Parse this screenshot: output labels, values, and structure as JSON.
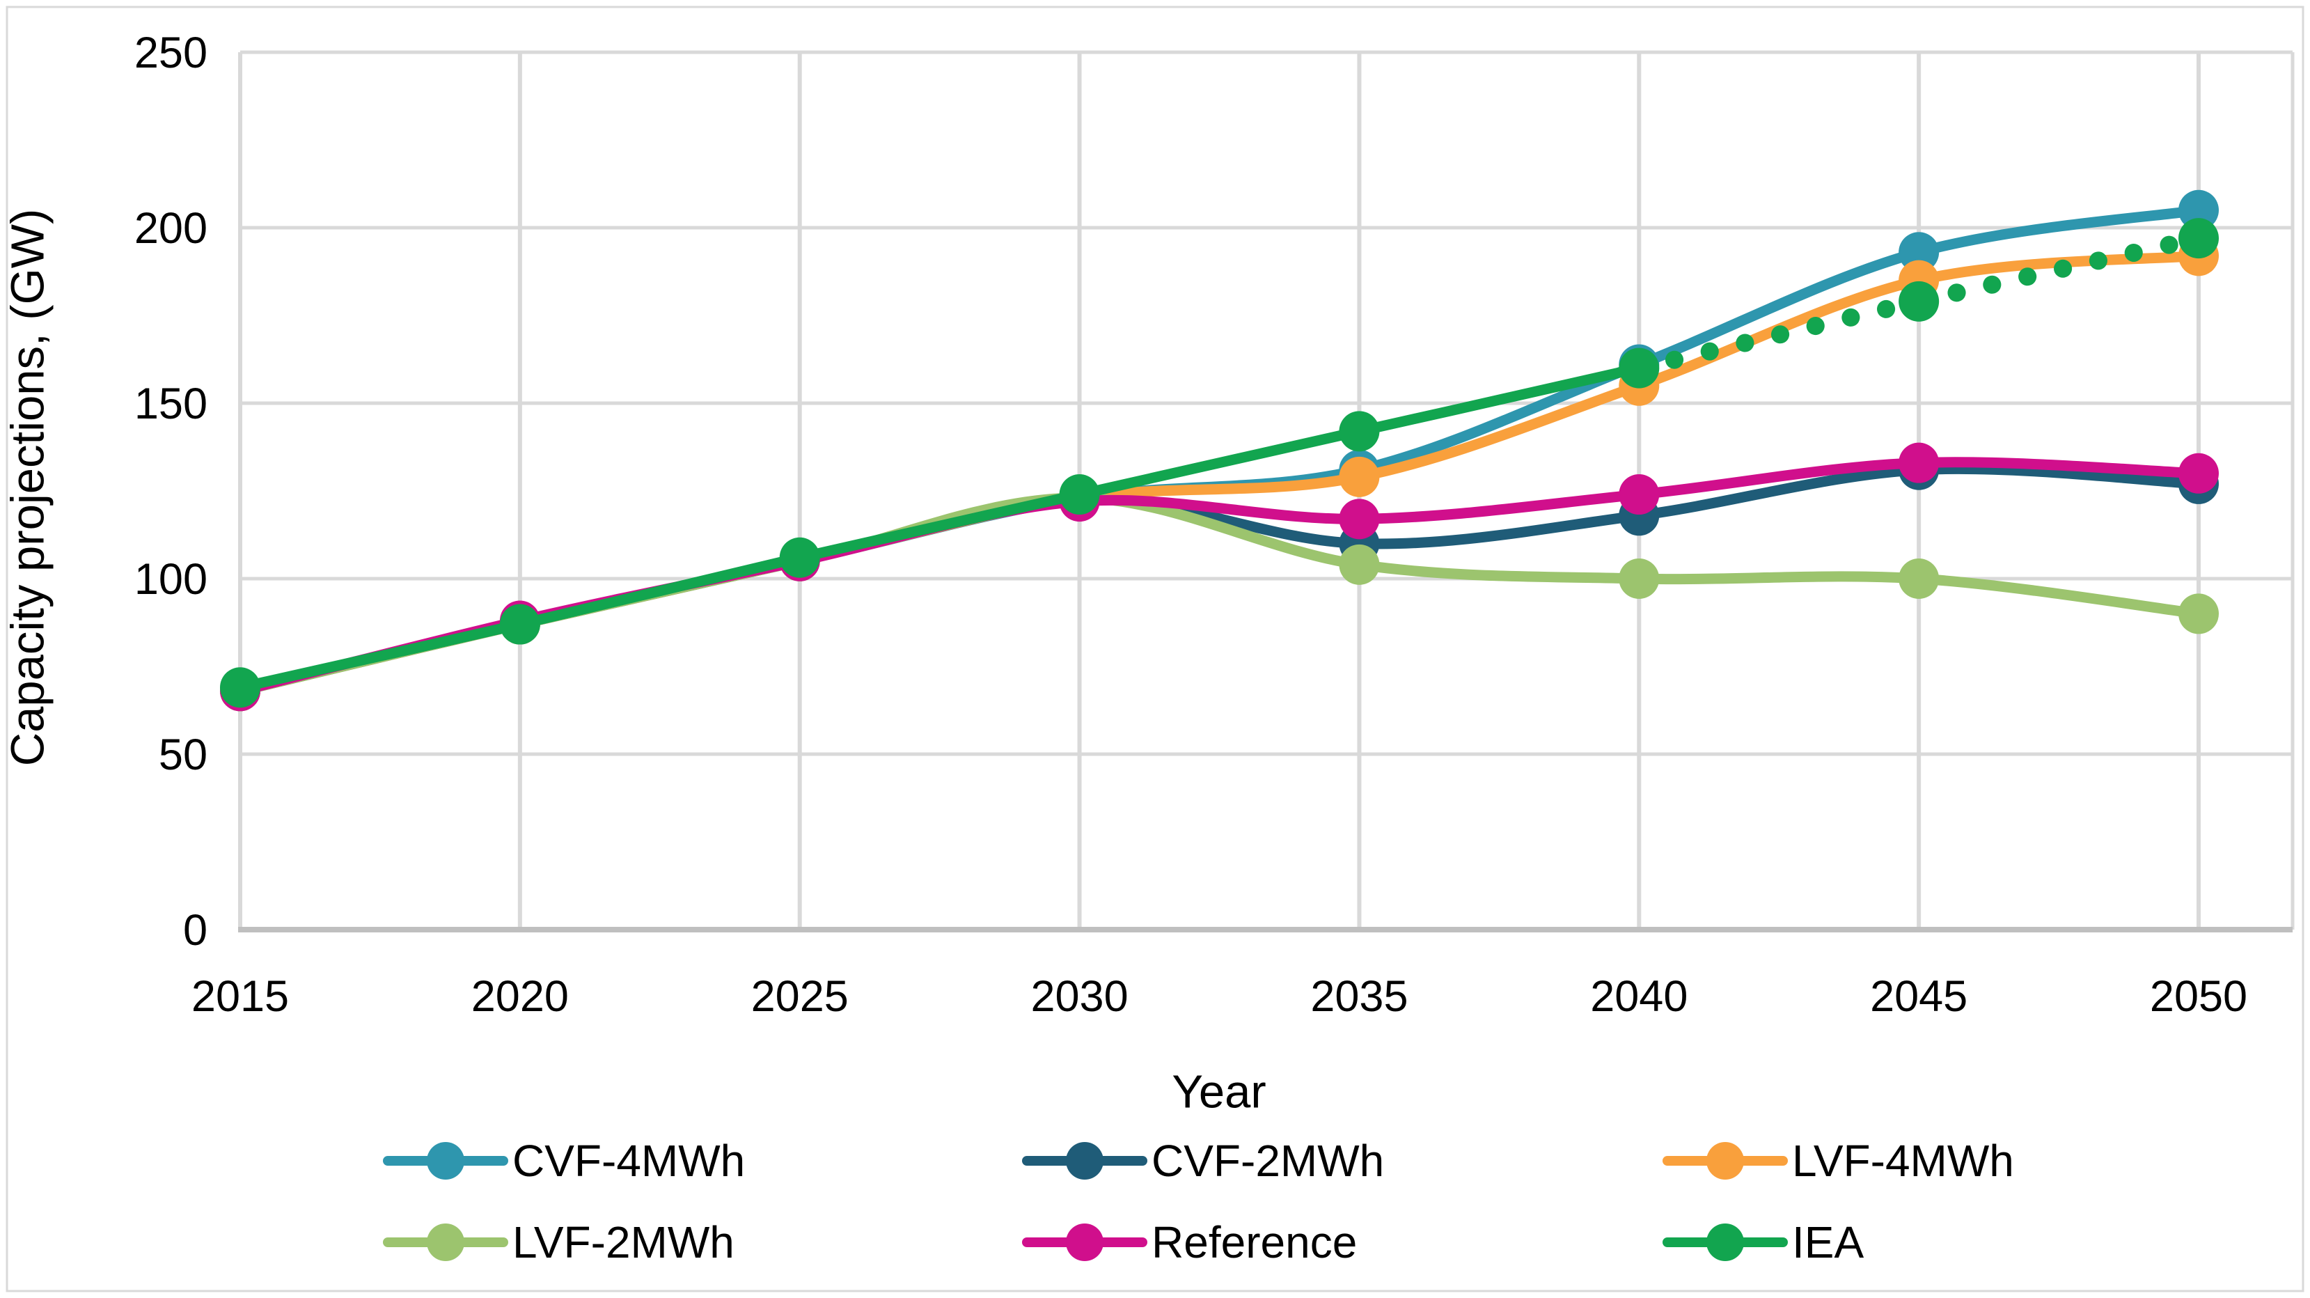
{
  "figure": {
    "background": "#ffffff",
    "outer_border_color": "#d9d9d9"
  },
  "colors": {
    "gridline": "#d9d9d9",
    "axis_line": "#bfbfbf",
    "text": "#000000"
  },
  "chart_data": {
    "type": "line",
    "title": "",
    "xlabel": "Year",
    "ylabel": "Capacity projections, (GW)",
    "x": [
      2015,
      2020,
      2025,
      2030,
      2035,
      2040,
      2045,
      2050
    ],
    "yticks": [
      0,
      50,
      100,
      150,
      200,
      250
    ],
    "ylim": [
      0,
      250
    ],
    "grid": true,
    "legend_position": "bottom",
    "marker": "circle",
    "series": [
      {
        "name": "CVF-4MWh",
        "color": "#2e96ae",
        "style": "solid",
        "values": [
          68,
          87,
          105,
          123,
          131,
          161,
          193,
          205
        ]
      },
      {
        "name": "CVF-2MWh",
        "color": "#1f5c78",
        "style": "solid",
        "values": [
          68,
          87,
          105,
          123,
          110,
          118,
          131,
          127
        ]
      },
      {
        "name": "LVF-4MWh",
        "color": "#f9a03c",
        "style": "solid",
        "values": [
          68,
          87,
          105,
          123,
          129,
          155,
          185,
          192
        ]
      },
      {
        "name": "LVF-2MWh",
        "color": "#9cc46e",
        "style": "solid",
        "values": [
          68,
          87,
          105,
          123,
          104,
          100,
          100,
          90
        ]
      },
      {
        "name": "Reference",
        "color": "#d00f8c",
        "style": "solid",
        "values": [
          68,
          88,
          105,
          122,
          117,
          124,
          133,
          130
        ]
      },
      {
        "name": "IEA",
        "color": "#12a54f",
        "style": "solid_then_dotted",
        "dotted_from": 2040,
        "values": [
          69,
          87,
          106,
          124,
          142,
          160,
          179,
          197
        ]
      }
    ]
  }
}
